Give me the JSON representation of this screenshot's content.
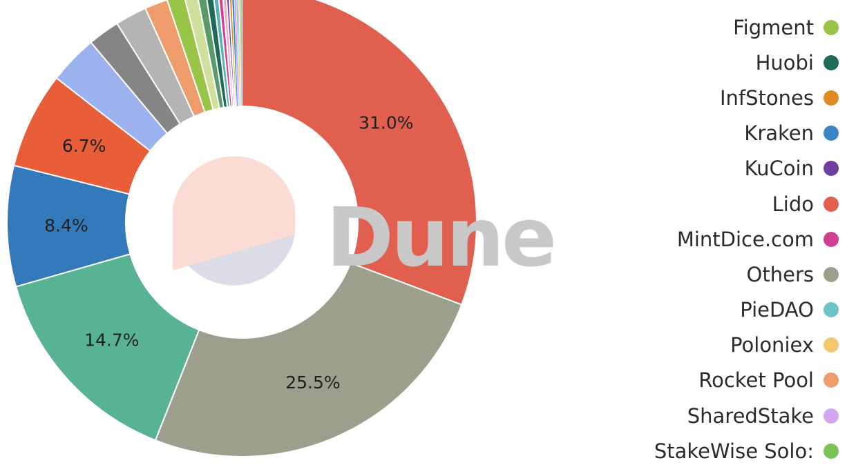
{
  "watermark": "Dune",
  "chart_data": {
    "type": "pie",
    "donut": true,
    "title": "",
    "slices": [
      {
        "label": "Lido",
        "value": 31.0,
        "color": "#e05f4f",
        "display": "31.0%"
      },
      {
        "label": "Others",
        "value": 25.5,
        "color": "#9c9f8c",
        "display": "25.5%"
      },
      {
        "label": "",
        "value": 14.7,
        "color": "#58b394",
        "display": "14.7%"
      },
      {
        "label": "",
        "value": 8.4,
        "color": "#3479ba",
        "display": "8.4%"
      },
      {
        "label": "",
        "value": 6.7,
        "color": "#e85e38",
        "display": "6.7%"
      },
      {
        "label": "",
        "value": 3.4,
        "color": "#9bb2ef",
        "display": ""
      },
      {
        "label": "",
        "value": 2.2,
        "color": "#858585",
        "display": ""
      },
      {
        "label": "",
        "value": 2.2,
        "color": "#b4b4b4",
        "display": ""
      },
      {
        "label": "Rocket Pool",
        "value": 1.6,
        "color": "#ef9c6c",
        "display": ""
      },
      {
        "label": "Figment",
        "value": 1.2,
        "color": "#98c447",
        "display": ""
      },
      {
        "label": "",
        "value": 0.9,
        "color": "#cfe09c",
        "display": ""
      },
      {
        "label": "",
        "value": 0.6,
        "color": "#5a9a68",
        "display": ""
      },
      {
        "label": "Huobi",
        "value": 0.5,
        "color": "#1f6b57",
        "display": ""
      },
      {
        "label": "",
        "value": 0.35,
        "color": "#59b2b8",
        "display": ""
      },
      {
        "label": "MintDice.com",
        "value": 0.3,
        "color": "#d1408f",
        "display": ""
      },
      {
        "label": "",
        "value": 0.25,
        "color": "#f2a5c7",
        "display": ""
      },
      {
        "label": "KuCoin",
        "value": 0.2,
        "color": "#6f3fa0",
        "display": ""
      },
      {
        "label": "InfStones",
        "value": 0.2,
        "color": "#e08a24",
        "display": ""
      },
      {
        "label": "Kraken",
        "value": 0.15,
        "color": "#3b86c4",
        "display": ""
      },
      {
        "label": "SharedStake",
        "value": 0.15,
        "color": "#d3a7ef",
        "display": ""
      },
      {
        "label": "PieDAO",
        "value": 0.1,
        "color": "#6cc3c8",
        "display": ""
      },
      {
        "label": "Poloniex",
        "value": 0.1,
        "color": "#f3c86e",
        "display": ""
      },
      {
        "label": "",
        "value": 0.1,
        "color": "#b9cde4",
        "display": ""
      },
      {
        "label": "StakeWise Solo:",
        "value": 0.1,
        "color": "#7cc153",
        "display": ""
      }
    ],
    "legend": [
      {
        "label": "Figment",
        "color": "#98c447"
      },
      {
        "label": "Huobi",
        "color": "#1f6b57"
      },
      {
        "label": "InfStones",
        "color": "#e08a24"
      },
      {
        "label": "Kraken",
        "color": "#3b86c4"
      },
      {
        "label": "KuCoin",
        "color": "#6f3fa0"
      },
      {
        "label": "Lido",
        "color": "#e05f4f"
      },
      {
        "label": "MintDice.com",
        "color": "#d1408f"
      },
      {
        "label": "Others",
        "color": "#9c9f8c"
      },
      {
        "label": "PieDAO",
        "color": "#6cc3c8"
      },
      {
        "label": "Poloniex",
        "color": "#f3c86e"
      },
      {
        "label": "Rocket Pool",
        "color": "#ef9c6c"
      },
      {
        "label": "SharedStake",
        "color": "#d3a7ef"
      },
      {
        "label": "StakeWise Solo:",
        "color": "#7cc153"
      }
    ],
    "legend_placement": "right"
  }
}
